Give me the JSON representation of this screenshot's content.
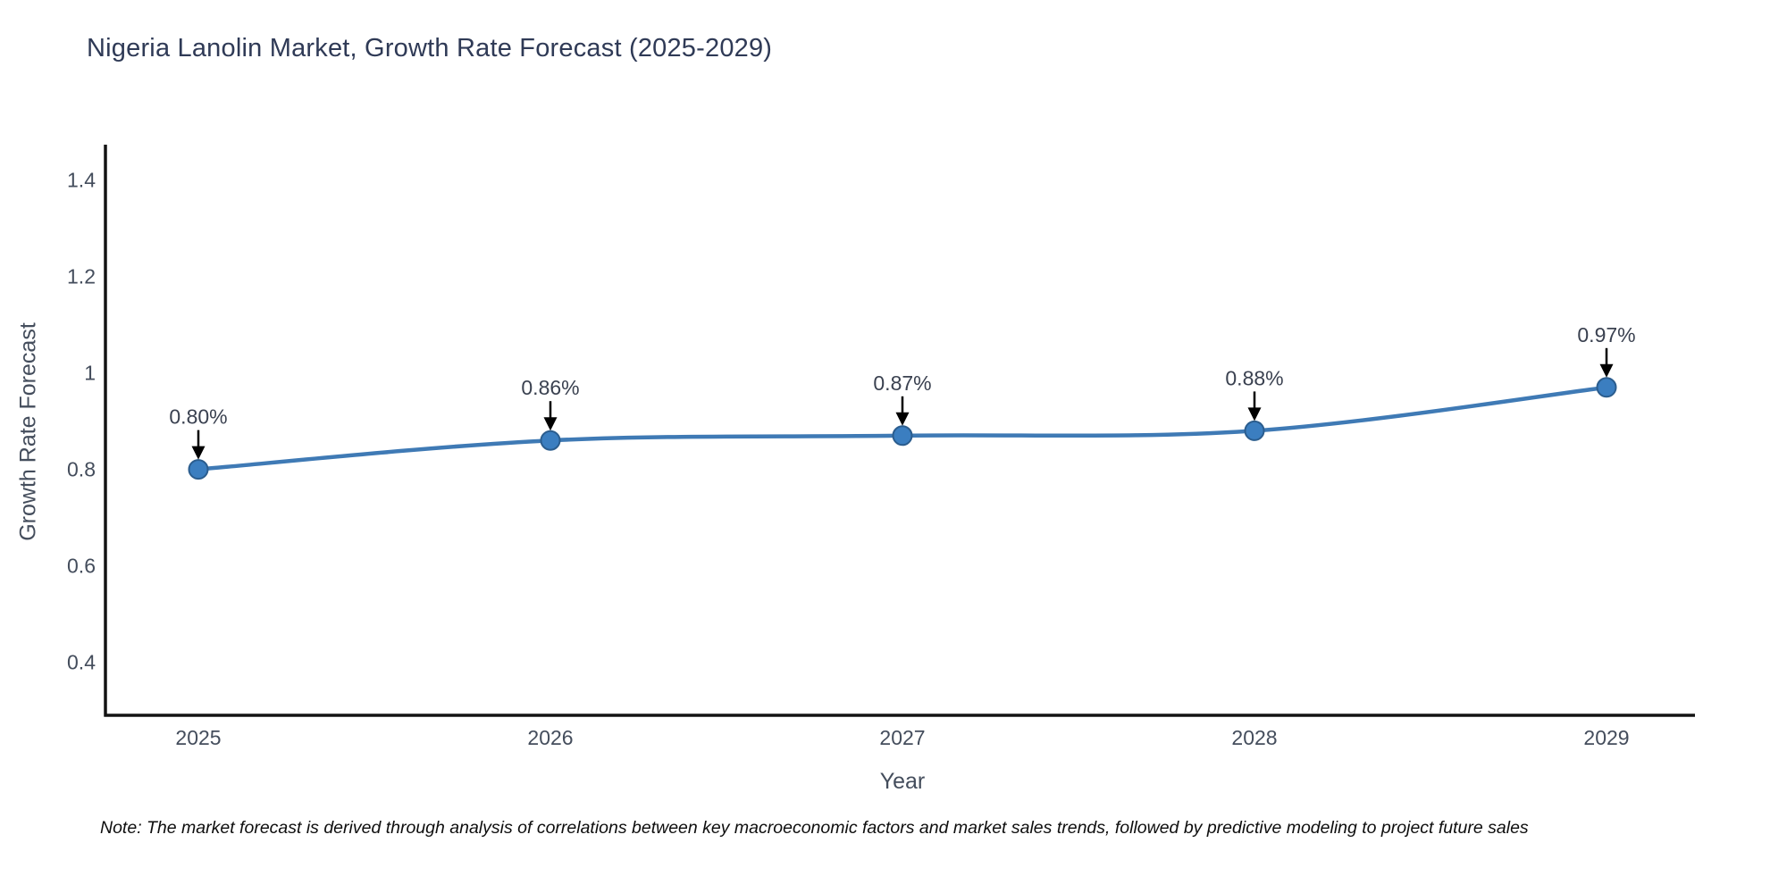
{
  "title": "Nigeria Lanolin Market, Growth Rate Forecast (2025-2029)",
  "note": "Note: The market forecast is derived through analysis of correlations between key macroeconomic factors and market sales trends, followed by predictive modeling to project future sales",
  "chart_data": {
    "type": "line",
    "title": "Nigeria Lanolin Market, Growth Rate Forecast (2025-2029)",
    "xlabel": "Year",
    "ylabel": "Growth Rate Forecast",
    "x": [
      2025,
      2026,
      2027,
      2028,
      2029
    ],
    "values": [
      0.8,
      0.86,
      0.87,
      0.88,
      0.97
    ],
    "point_labels": [
      "0.80%",
      "0.86%",
      "0.87%",
      "0.88%",
      "0.97%"
    ],
    "xtick_labels": [
      "2025",
      "2026",
      "2027",
      "2028",
      "2029"
    ],
    "ytick_values": [
      0.4,
      0.6,
      0.8,
      1,
      1.2,
      1.4
    ],
    "ytick_labels": [
      "0.4",
      "0.6",
      "0.8",
      "1",
      "1.2",
      "1.4"
    ],
    "ylim": [
      0.29,
      1.47
    ],
    "grid": false,
    "legend": "none",
    "line_shape": "spline",
    "colors": {
      "line": "#3f7ab5",
      "marker_fill": "#3b7ec0",
      "marker_edge": "#2b5d8e",
      "axis": "#131313",
      "tick_text": "#444d5c",
      "label_text": "#3a4150",
      "arrow": "#000000",
      "title_text": "#2f3a56",
      "background": "#ffffff"
    }
  }
}
